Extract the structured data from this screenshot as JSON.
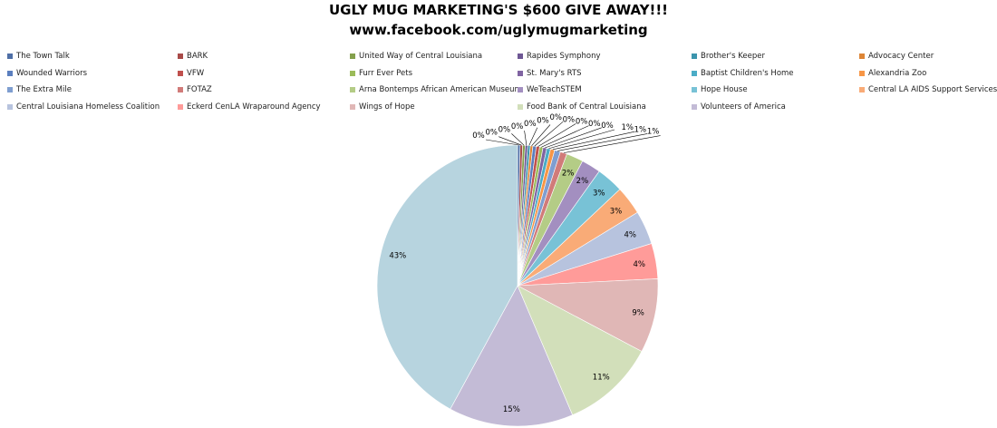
{
  "chart_data": {
    "type": "pie",
    "title": "UGLY MUG MARKETING'S $600 GIVE AWAY!!!",
    "subtitle": "www.facebook.com/uglymugmarketing",
    "legend_position": "top",
    "slices": [
      {
        "name": "The Town Talk",
        "value": 0.3,
        "label": "0%",
        "color": "#4f6fa6"
      },
      {
        "name": "BARK",
        "value": 0.3,
        "label": "0%",
        "color": "#a84a48"
      },
      {
        "name": "United Way of Central Louisiana",
        "value": 0.3,
        "label": "0%",
        "color": "#84a04c"
      },
      {
        "name": "Rapides Symphony",
        "value": 0.3,
        "label": "0%",
        "color": "#6e5794"
      },
      {
        "name": "Brother's Keeper",
        "value": 0.3,
        "label": "0%",
        "color": "#3c95ad"
      },
      {
        "name": "Advocacy Center",
        "value": 0.3,
        "label": "0%",
        "color": "#dd8536"
      },
      {
        "name": "Wounded Warriors",
        "value": 0.4,
        "label": "0%",
        "color": "#5b7fbf"
      },
      {
        "name": "VFW",
        "value": 0.4,
        "label": "0%",
        "color": "#c0504d"
      },
      {
        "name": "Furr Ever Pets",
        "value": 0.4,
        "label": "0%",
        "color": "#9bbb59"
      },
      {
        "name": "St. Mary's RTS",
        "value": 0.45,
        "label": "0%",
        "color": "#8064a2"
      },
      {
        "name": "Baptist Children's Home",
        "value": 0.45,
        "label": "0%",
        "color": "#4bacc6"
      },
      {
        "name": "Alexandria Zoo",
        "value": 0.5,
        "label": "1%",
        "color": "#f79646"
      },
      {
        "name": "The Extra Mile",
        "value": 0.7,
        "label": "1%",
        "color": "#7f9ed0"
      },
      {
        "name": "FOTAZ",
        "value": 0.8,
        "label": "1%",
        "color": "#d17b79"
      },
      {
        "name": "Arna Bontemps African American Museum",
        "value": 2.0,
        "label": "2%",
        "color": "#b4cc86"
      },
      {
        "name": "WeTeachSTEM",
        "value": 2.3,
        "label": "2%",
        "color": "#a38fc0"
      },
      {
        "name": "Hope House",
        "value": 3.2,
        "label": "3%",
        "color": "#78c2d6"
      },
      {
        "name": "Central LA AIDS Support Services",
        "value": 3.4,
        "label": "3%",
        "color": "#f9ab77"
      },
      {
        "name": "Central Louisiana Homeless Coalition",
        "value": 4.0,
        "label": "4%",
        "color": "#b7c3de"
      },
      {
        "name": "Eckerd CenLA Wraparound Agency",
        "value": 4.2,
        "label": "4%",
        "color": "#ff9b99"
      },
      {
        "name": "Wings of Hope",
        "value": 8.8,
        "label": "9%",
        "color": "#e0b7b6"
      },
      {
        "name": "Food Bank of Central Louisiana",
        "value": 11.2,
        "label": "11%",
        "color": "#d2dfba"
      },
      {
        "name": "Volunteers of America",
        "value": 14.8,
        "label": "15%",
        "color": "#c3bbd6"
      },
      {
        "name": "",
        "value": 43.4,
        "label": "43%",
        "color": "#b7d4df"
      }
    ]
  }
}
